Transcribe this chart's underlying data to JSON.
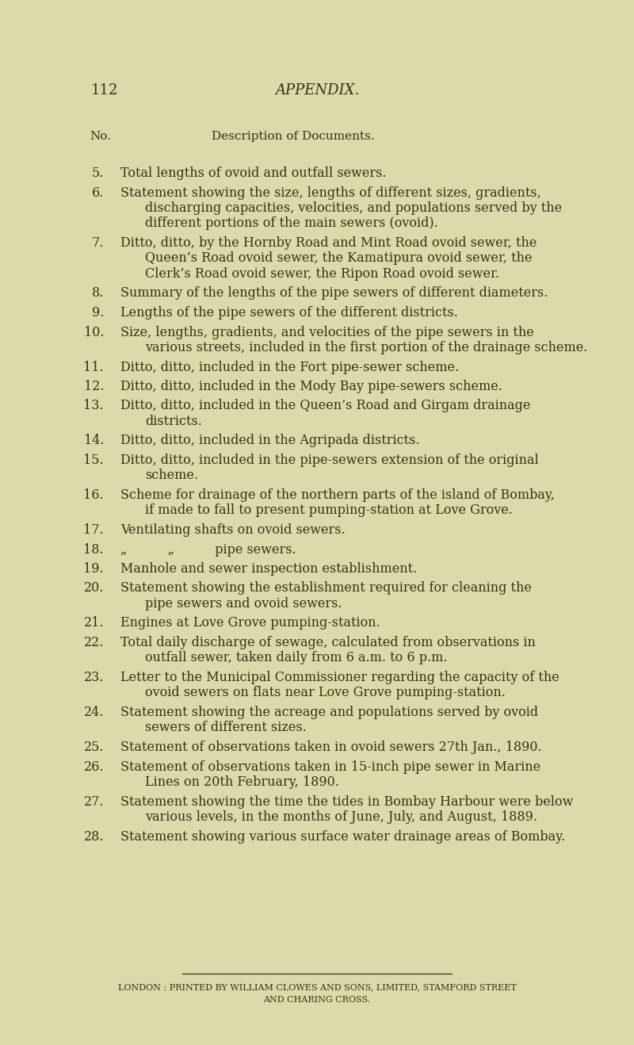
{
  "background_color": "#ddd9a8",
  "page_number": "112",
  "page_header": "APPENDIX.",
  "col_no_label": "No.",
  "col_desc_label": "Description of Documents.",
  "items": [
    {
      "num": "5.",
      "lines": [
        "Total lengths of ovoid and outfall sewers."
      ]
    },
    {
      "num": "6.",
      "lines": [
        "Statement showing the size, lengths of different sizes, gradients,",
        "discharging capacities, velocities, and populations served by the",
        "different portions of the main sewers (ovoid)."
      ]
    },
    {
      "num": "7.",
      "lines": [
        "Ditto, ditto, by the Hornby Road and Mint Road ovoid sewer, the",
        "Queen’s Road ovoid sewer, the Kamatipura ovoid sewer, the",
        "Clerk’s Road ovoid sewer, the Ripon Road ovoid sewer."
      ]
    },
    {
      "num": "8.",
      "lines": [
        "Summary of the lengths of the pipe sewers of different diameters."
      ]
    },
    {
      "num": "9.",
      "lines": [
        "Lengths of the pipe sewers of the different districts."
      ]
    },
    {
      "num": "10.",
      "lines": [
        "Size, lengths, gradients, and velocities of the pipe sewers in the",
        "various streets, included in the first portion of the drainage scheme."
      ]
    },
    {
      "num": "11.",
      "lines": [
        "Ditto, ditto, included in the Fort pipe-sewer scheme."
      ]
    },
    {
      "num": "12.",
      "lines": [
        "Ditto, ditto, included in the Mody Bay pipe-sewers scheme."
      ]
    },
    {
      "num": "13.",
      "lines": [
        "Ditto, ditto, included in the Queen’s Road and Girgam drainage",
        "districts."
      ]
    },
    {
      "num": "14.",
      "lines": [
        "Ditto, ditto, included in the Agripada districts."
      ]
    },
    {
      "num": "15.",
      "lines": [
        "Ditto, ditto, included in the pipe-sewers extension of the original",
        "scheme."
      ]
    },
    {
      "num": "16.",
      "lines": [
        "Scheme for drainage of the northern parts of the island of Bombay,",
        "if made to fall to present pumping-station at Love Grove."
      ]
    },
    {
      "num": "17.",
      "lines": [
        "Ventilating shafts on ovoid sewers."
      ]
    },
    {
      "num": "18.",
      "lines": [
        "„          „          pipe sewers."
      ]
    },
    {
      "num": "19.",
      "lines": [
        "Manhole and sewer inspection establishment."
      ]
    },
    {
      "num": "20.",
      "lines": [
        "Statement showing the establishment required for cleaning the",
        "pipe sewers and ovoid sewers."
      ]
    },
    {
      "num": "21.",
      "lines": [
        "Engines at Love Grove pumping-station."
      ]
    },
    {
      "num": "22.",
      "lines": [
        "Total daily discharge of sewage, calculated from observations in",
        "outfall sewer, taken daily from 6 a.m. to 6 p.m."
      ]
    },
    {
      "num": "23.",
      "lines": [
        "Letter to the Municipal Commissioner regarding the capacity of the",
        "ovoid sewers on flats near Love Grove pumping-station."
      ]
    },
    {
      "num": "24.",
      "lines": [
        "Statement showing the acreage and populations served by ovoid",
        "sewers of different sizes."
      ]
    },
    {
      "num": "25.",
      "lines": [
        "Statement of observations taken in ovoid sewers 27th Jan., 1890."
      ]
    },
    {
      "num": "26.",
      "lines": [
        "Statement of observations taken in 15-inch pipe sewer in Marine",
        "Lines on 20th February, 1890."
      ]
    },
    {
      "num": "27.",
      "lines": [
        "Statement showing the time the tides in Bombay Harbour were below",
        "various levels, in the months of June, July, and August, 1889."
      ]
    },
    {
      "num": "28.",
      "lines": [
        "Statement showing various surface water drainage areas of Bombay."
      ]
    }
  ],
  "footer_line": "LONDON : PRINTED BY WILLIAM CLOWES AND SONS, LIMITED, STAMFORD STREET",
  "footer_line2": "AND CHARING CROSS.",
  "text_color": "#3a3018",
  "font_size_header": 13,
  "font_size_body": 11.5,
  "font_size_col_header": 11,
  "font_size_footer": 8,
  "font_size_page_num": 13
}
